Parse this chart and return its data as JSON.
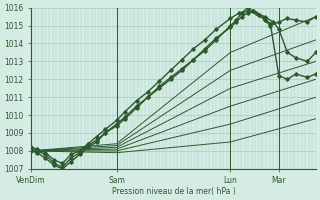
{
  "background_color": "#d4ece4",
  "grid_color": "#a8ccc0",
  "line_color": "#2d5a2d",
  "y_min": 1007,
  "y_max": 1016,
  "y_ticks": [
    1007,
    1008,
    1009,
    1010,
    1011,
    1012,
    1013,
    1014,
    1015,
    1016
  ],
  "xlabel": "Pression niveau de la mer( hPa )",
  "x_tick_positions": [
    0.0,
    0.3,
    0.7,
    0.87
  ],
  "x_tick_labels": [
    "VenDim",
    "Sam",
    "Lun",
    "Mar"
  ],
  "x_vlines": [
    0.0,
    0.3,
    0.7,
    0.87
  ],
  "xlim": [
    0.0,
    1.0
  ],
  "lines": [
    {
      "x": [
        0.0,
        0.02,
        0.05,
        0.08,
        0.11,
        0.14,
        0.17,
        0.2,
        0.23,
        0.26,
        0.3,
        0.33,
        0.37,
        0.41,
        0.45,
        0.49,
        0.53,
        0.57,
        0.61,
        0.65,
        0.7,
        0.72,
        0.74,
        0.76,
        0.78,
        0.8,
        0.82,
        0.84,
        0.87,
        0.9,
        0.93,
        0.97,
        1.0
      ],
      "y": [
        1008.1,
        1008.0,
        1007.8,
        1007.3,
        1007.1,
        1007.6,
        1007.9,
        1008.3,
        1008.6,
        1009.0,
        1009.5,
        1009.9,
        1010.5,
        1011.0,
        1011.6,
        1012.1,
        1012.6,
        1013.1,
        1013.6,
        1014.2,
        1015.0,
        1015.3,
        1015.7,
        1016.0,
        1015.8,
        1015.6,
        1015.4,
        1015.1,
        1012.2,
        1012.0,
        1012.3,
        1012.1,
        1012.3
      ],
      "lw": 1.0,
      "marker": "D",
      "ms": 1.8,
      "zorder": 4
    },
    {
      "x": [
        0.0,
        0.02,
        0.05,
        0.08,
        0.11,
        0.14,
        0.17,
        0.2,
        0.23,
        0.26,
        0.3,
        0.33,
        0.37,
        0.41,
        0.45,
        0.49,
        0.53,
        0.57,
        0.61,
        0.65,
        0.7,
        0.72,
        0.74,
        0.76,
        0.78,
        0.8,
        0.82,
        0.84,
        0.87,
        0.9,
        0.93,
        0.97,
        1.0
      ],
      "y": [
        1008.0,
        1007.9,
        1007.6,
        1007.2,
        1007.0,
        1007.4,
        1007.8,
        1008.2,
        1008.5,
        1009.0,
        1009.4,
        1009.8,
        1010.4,
        1011.0,
        1011.5,
        1012.0,
        1012.5,
        1013.1,
        1013.7,
        1014.3,
        1014.9,
        1015.2,
        1015.5,
        1015.7,
        1015.8,
        1015.6,
        1015.3,
        1015.0,
        1015.2,
        1015.4,
        1015.3,
        1015.2,
        1015.5
      ],
      "lw": 1.0,
      "marker": "D",
      "ms": 1.8,
      "zorder": 4
    },
    {
      "x": [
        0.0,
        0.02,
        0.05,
        0.08,
        0.11,
        0.14,
        0.17,
        0.2,
        0.23,
        0.26,
        0.3,
        0.33,
        0.37,
        0.41,
        0.45,
        0.49,
        0.53,
        0.57,
        0.61,
        0.65,
        0.7,
        0.73,
        0.76,
        0.79,
        0.82,
        0.85,
        0.87,
        0.9,
        0.93,
        0.97,
        1.0
      ],
      "y": [
        1008.2,
        1008.1,
        1007.9,
        1007.5,
        1007.3,
        1007.8,
        1008.0,
        1008.4,
        1008.8,
        1009.2,
        1009.7,
        1010.2,
        1010.8,
        1011.3,
        1011.9,
        1012.5,
        1013.1,
        1013.7,
        1014.2,
        1014.8,
        1015.4,
        1015.7,
        1015.8,
        1015.7,
        1015.5,
        1015.2,
        1014.8,
        1013.5,
        1013.2,
        1013.0,
        1013.5
      ],
      "lw": 1.0,
      "marker": "D",
      "ms": 1.8,
      "zorder": 4
    },
    {
      "x": [
        0.0,
        0.3,
        0.7,
        1.0
      ],
      "y": [
        1008.0,
        1008.4,
        1013.5,
        1015.5
      ],
      "lw": 0.7,
      "marker": null,
      "ms": 0,
      "zorder": 2
    },
    {
      "x": [
        0.0,
        0.3,
        0.7,
        1.0
      ],
      "y": [
        1008.0,
        1008.3,
        1012.5,
        1014.2
      ],
      "lw": 0.7,
      "marker": null,
      "ms": 0,
      "zorder": 2
    },
    {
      "x": [
        0.0,
        0.3,
        0.7,
        1.0
      ],
      "y": [
        1008.0,
        1008.2,
        1011.5,
        1013.0
      ],
      "lw": 0.7,
      "marker": null,
      "ms": 0,
      "zorder": 2
    },
    {
      "x": [
        0.0,
        0.3,
        0.7,
        1.0
      ],
      "y": [
        1008.0,
        1008.1,
        1010.5,
        1012.0
      ],
      "lw": 0.7,
      "marker": null,
      "ms": 0,
      "zorder": 2
    },
    {
      "x": [
        0.0,
        0.3,
        0.7,
        1.0
      ],
      "y": [
        1008.0,
        1008.0,
        1009.5,
        1011.0
      ],
      "lw": 0.7,
      "marker": null,
      "ms": 0,
      "zorder": 2
    },
    {
      "x": [
        0.0,
        0.3,
        0.7,
        1.0
      ],
      "y": [
        1008.0,
        1007.9,
        1008.5,
        1009.8
      ],
      "lw": 0.7,
      "marker": null,
      "ms": 0,
      "zorder": 2
    }
  ]
}
